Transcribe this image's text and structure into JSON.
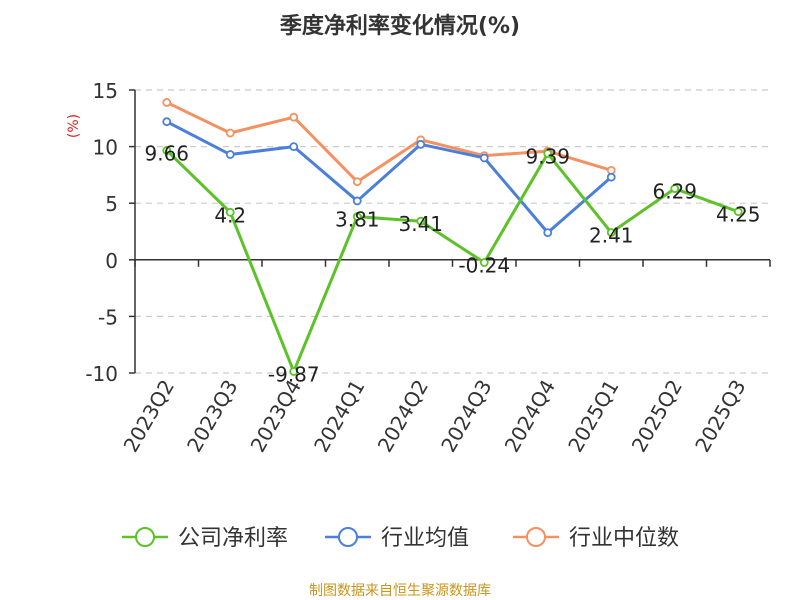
{
  "chart_data": {
    "type": "line",
    "title": "季度净利率变化情况(%)",
    "ylabel": "(%)",
    "xlabel": "",
    "ylim": [
      -10,
      15
    ],
    "yticks": [
      -10,
      -5,
      0,
      5,
      10,
      15
    ],
    "grid": true,
    "legend_position": "bottom",
    "categories": [
      "2023Q2",
      "2023Q3",
      "2023Q4",
      "2024Q1",
      "2024Q2",
      "2024Q3",
      "2024Q4",
      "2025Q1",
      "2025Q2",
      "2025Q3"
    ],
    "series": [
      {
        "name": "公司净利率",
        "color": "#5cc227",
        "values": [
          9.66,
          4.2,
          -9.87,
          3.81,
          3.41,
          -0.24,
          9.39,
          2.41,
          6.29,
          4.25
        ],
        "labels": [
          "9.66",
          "4.2",
          "-9.87",
          "3.81",
          "3.41",
          "-0.24",
          "9.39",
          "2.41",
          "6.29",
          "4.25"
        ]
      },
      {
        "name": "行业均值",
        "color": "#4a7fdc",
        "values": [
          12.2,
          9.3,
          10.0,
          5.2,
          10.2,
          9.0,
          2.4,
          7.3,
          null,
          null
        ]
      },
      {
        "name": "行业中位数",
        "color": "#f59060",
        "values": [
          13.9,
          11.2,
          12.6,
          6.9,
          10.6,
          9.2,
          9.6,
          7.9,
          null,
          null
        ]
      }
    ],
    "source": "制图数据来自恒生聚源数据库"
  }
}
